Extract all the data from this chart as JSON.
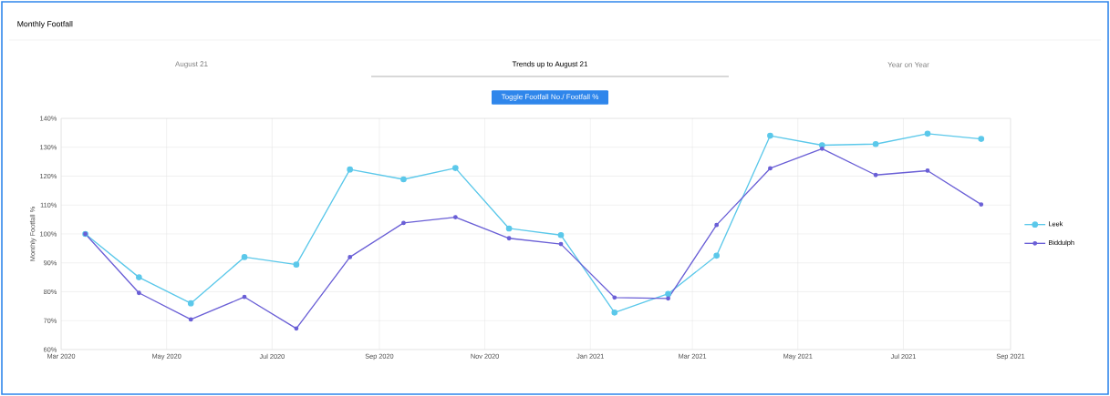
{
  "chart_data": {
    "type": "line",
    "title": "Monthly Footfall",
    "ylabel": "Monthly Footfall %",
    "annotations": [
      "August 21",
      "Trends up to August 21",
      "Year on Year",
      "Toggle Footfall No./ Footfall %"
    ],
    "x": [
      "2020-03-15",
      "2020-04-15",
      "2020-05-15",
      "2020-06-15",
      "2020-07-15",
      "2020-08-15",
      "2020-09-15",
      "2020-10-15",
      "2020-11-15",
      "2020-12-15",
      "2021-01-15",
      "2021-02-15",
      "2021-03-15",
      "2021-04-15",
      "2021-05-15",
      "2021-06-15",
      "2021-07-15",
      "2021-08-15"
    ],
    "series": [
      {
        "name": "Leek",
        "color": "#5bc8ea",
        "values": [
          100,
          85,
          76,
          92,
          89.4,
          122.3,
          118.9,
          122.8,
          101.9,
          99.6,
          72.8,
          79.3,
          92.5,
          134,
          130.7,
          131.1,
          134.7,
          132.9
        ]
      },
      {
        "name": "Biddulph",
        "color": "#6a5fd6",
        "values": [
          100,
          79.6,
          70.4,
          78.2,
          67.3,
          92,
          103.8,
          105.8,
          98.5,
          96.5,
          78,
          77.7,
          103.1,
          122.7,
          129.5,
          120.4,
          121.9,
          110.2
        ]
      }
    ],
    "xlim": [
      "2020-03-01",
      "2021-09-01"
    ],
    "xticks": [
      {
        "value": "2020-03-01",
        "label": "Mar 2020"
      },
      {
        "value": "2020-05-01",
        "label": "May 2020"
      },
      {
        "value": "2020-07-01",
        "label": "Jul 2020"
      },
      {
        "value": "2020-09-01",
        "label": "Sep 2020"
      },
      {
        "value": "2020-11-01",
        "label": "Nov 2020"
      },
      {
        "value": "2021-01-01",
        "label": "Jan 2021"
      },
      {
        "value": "2021-03-01",
        "label": "Mar 2021"
      },
      {
        "value": "2021-05-01",
        "label": "May 2021"
      },
      {
        "value": "2021-07-01",
        "label": "Jul 2021"
      },
      {
        "value": "2021-09-01",
        "label": "Sep 2021"
      }
    ],
    "ylim": [
      60,
      140
    ],
    "yticks": [
      {
        "value": 60,
        "label": "60%"
      },
      {
        "value": 70,
        "label": "70%"
      },
      {
        "value": 80,
        "label": "80%"
      },
      {
        "value": 90,
        "label": "90%"
      },
      {
        "value": 100,
        "label": "100%"
      },
      {
        "value": 110,
        "label": "110%"
      },
      {
        "value": 120,
        "label": "120%"
      },
      {
        "value": 130,
        "label": "130%"
      },
      {
        "value": 140,
        "label": "140%"
      }
    ],
    "grid": true,
    "legend": "right",
    "marker": "circle",
    "line_style": "solid"
  }
}
